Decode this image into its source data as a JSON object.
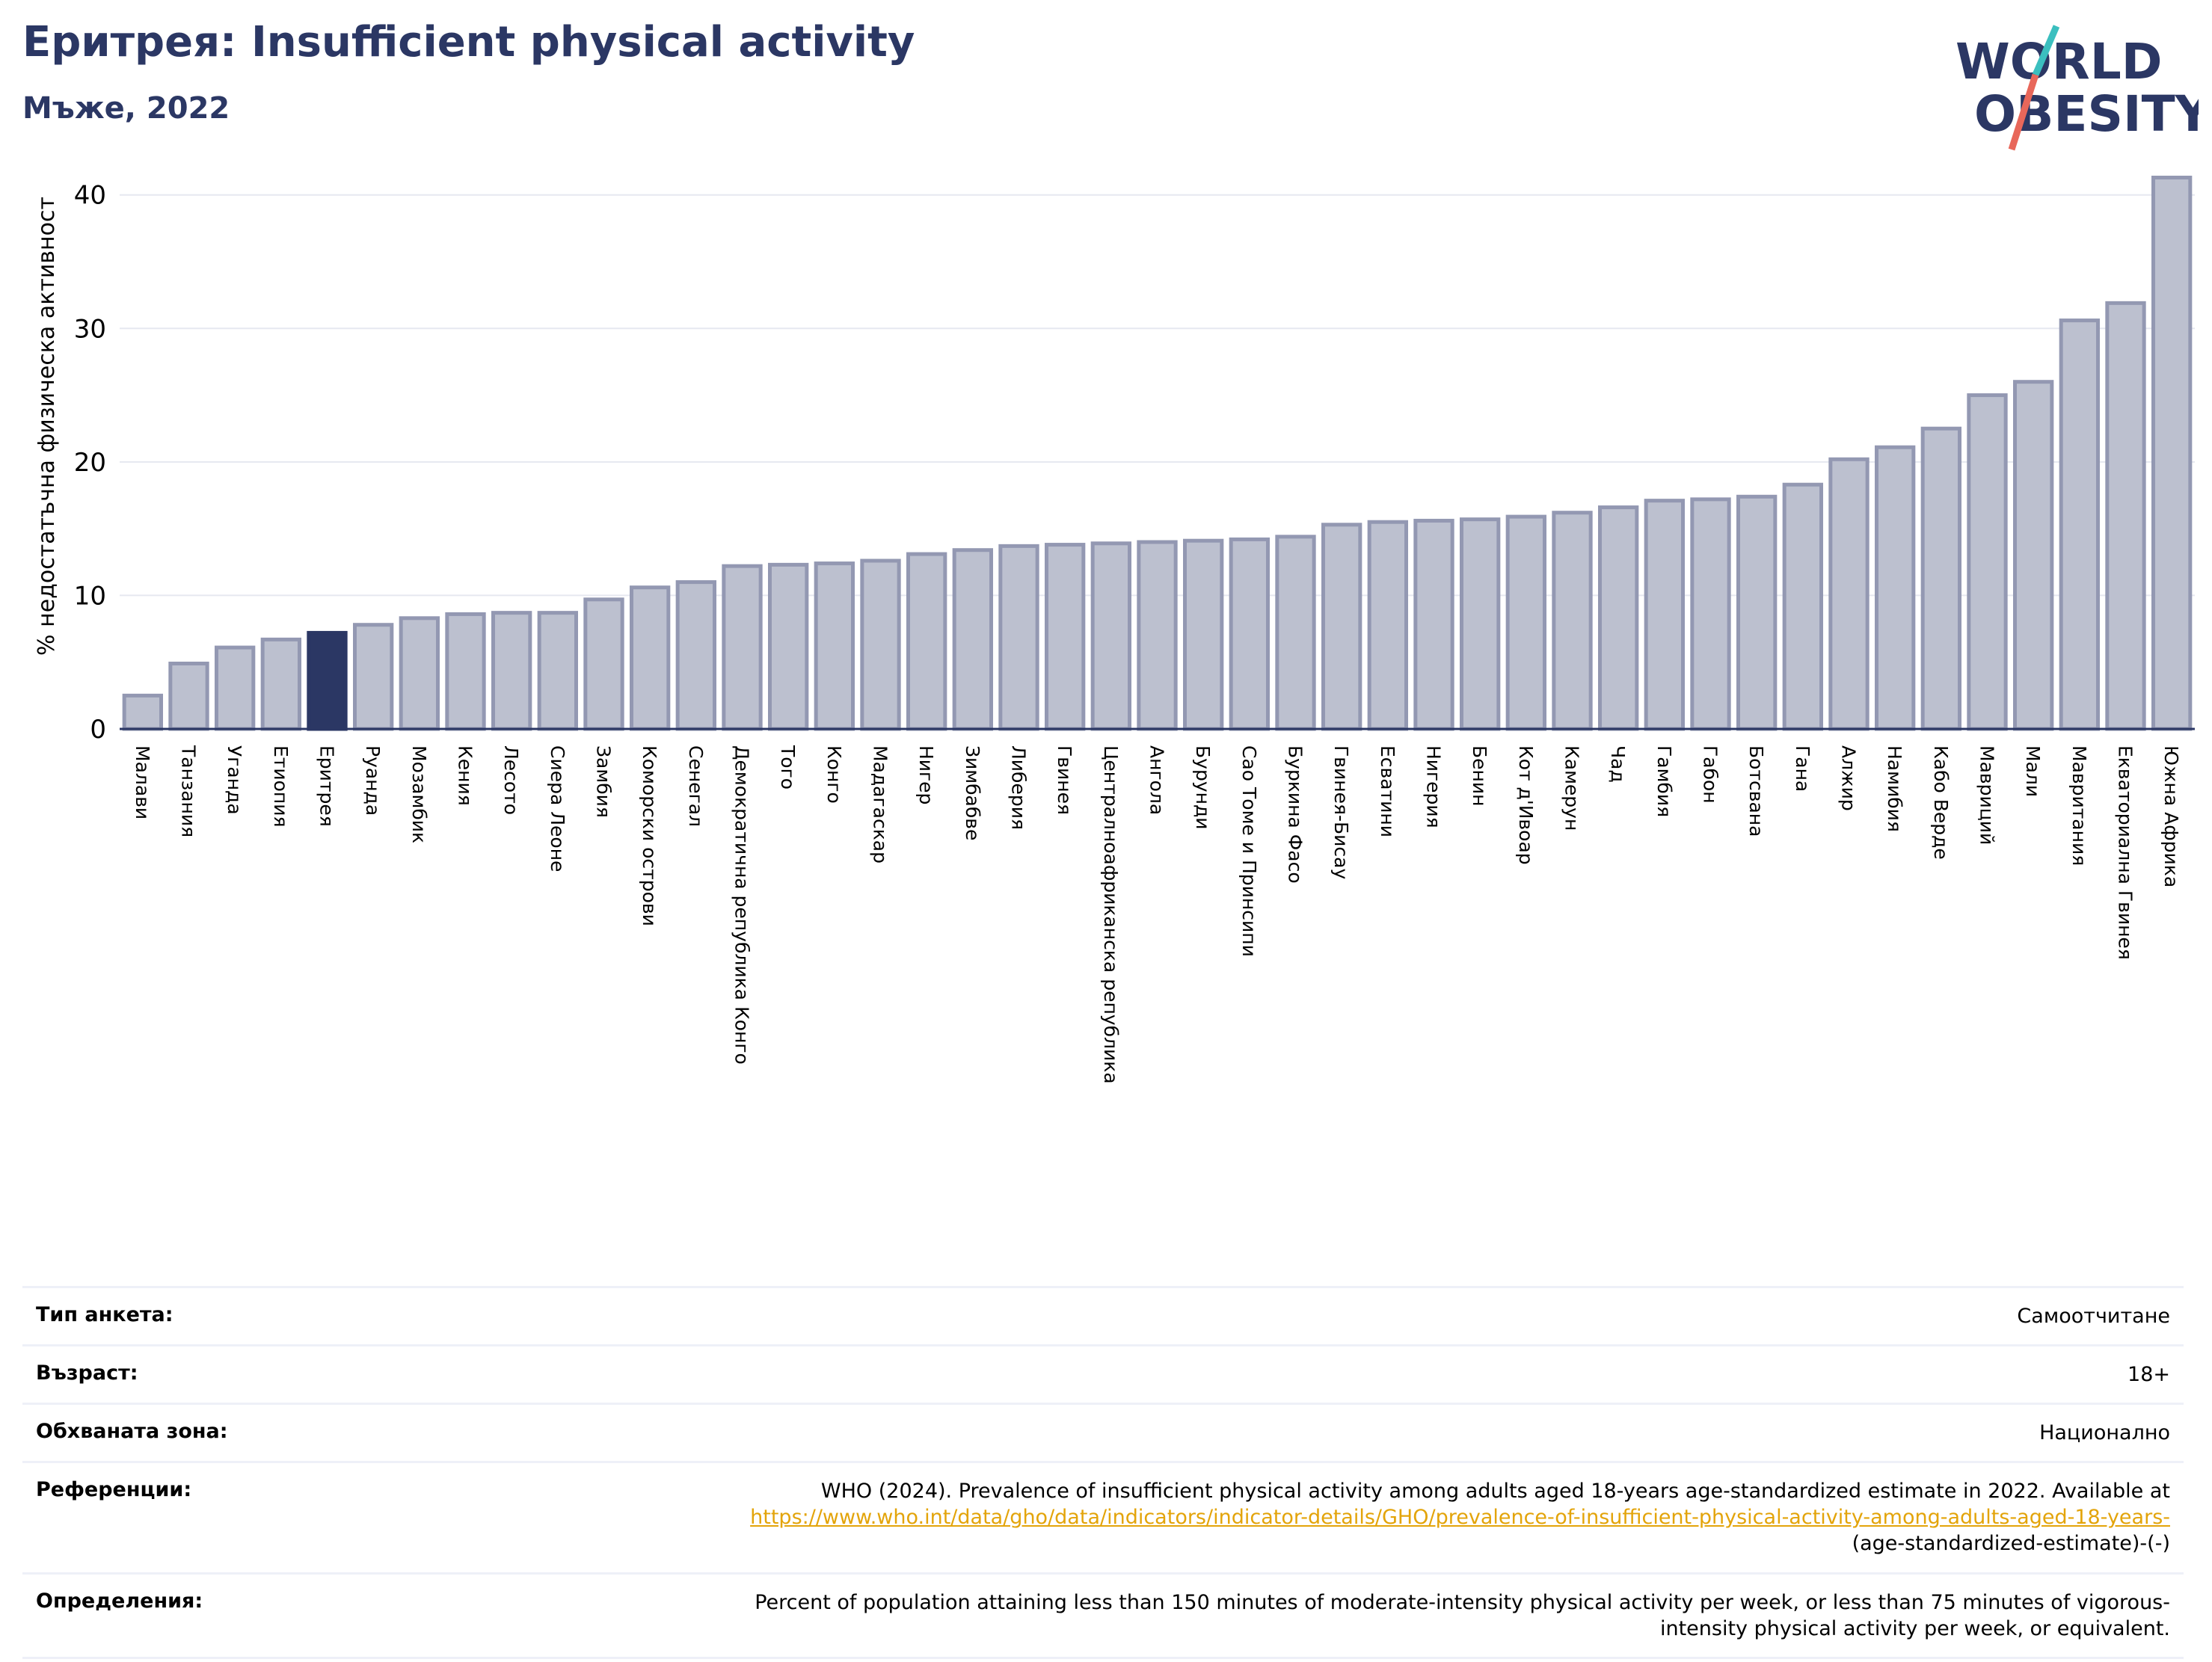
{
  "header": {
    "title": "Еритрея: Insufficient physical activity",
    "subtitle": "Мъже, 2022"
  },
  "logo": {
    "line1": "WORLD",
    "line2": "OBESITY"
  },
  "colors": {
    "highlight": "#2b3764",
    "bar_fill": "#bcc0cf",
    "bar_stroke": "#9398b2",
    "grid": "#e6e8f0",
    "logo_teal": "#3bbfbf",
    "logo_red": "#e8675a"
  },
  "chart_data": {
    "type": "bar",
    "ylabel": "% недостатъчна физическа активност",
    "ylim": [
      0,
      42
    ],
    "yticks": [
      0,
      10,
      20,
      30,
      40
    ],
    "grid": true,
    "highlight": "Еритрея",
    "categories": [
      "Малави",
      "Танзания",
      "Уганда",
      "Етиопия",
      "Еритрея",
      "Руанда",
      "Мозамбик",
      "Кения",
      "Лесото",
      "Сиера Леоне",
      "Замбия",
      "Коморски острови",
      "Сенегал",
      "Демократична република Конго",
      "Того",
      "Конго",
      "Мадагаскар",
      "Нигер",
      "Зимбабве",
      "Либерия",
      "Гвинея",
      "Централноафриканска република",
      "Ангола",
      "Бурунди",
      "Сао Томе и Принсипи",
      "Буркина Фасо",
      "Гвинея-Бисау",
      "Есватини",
      "Нигерия",
      "Бенин",
      "Кот д'Ивоар",
      "Камерун",
      "Чад",
      "Гамбия",
      "Габон",
      "Ботсвана",
      "Гана",
      "Алжир",
      "Намибия",
      "Кабо Верде",
      "Мавриций",
      "Мали",
      "Мавритания",
      "Екваториална Гвинея",
      "Южна Африка"
    ],
    "values": [
      2.5,
      4.9,
      6.1,
      6.7,
      7.2,
      7.8,
      8.3,
      8.6,
      8.7,
      8.7,
      9.7,
      10.6,
      11.0,
      12.2,
      12.3,
      12.4,
      12.6,
      13.1,
      13.4,
      13.7,
      13.8,
      13.9,
      14.0,
      14.1,
      14.2,
      14.4,
      15.3,
      15.5,
      15.6,
      15.7,
      15.9,
      16.2,
      16.6,
      17.1,
      17.2,
      17.4,
      18.3,
      20.2,
      21.1,
      22.5,
      25.0,
      26.0,
      30.6,
      31.9,
      41.3
    ]
  },
  "meta": {
    "rows": [
      {
        "key": "Тип анкета:",
        "value": "Самоотчитане"
      },
      {
        "key": "Възраст:",
        "value": "18+"
      },
      {
        "key": "Обхваната зона:",
        "value": "Национално"
      }
    ],
    "references": {
      "key": "Референции:",
      "text": "WHO (2024). Prevalence of insufficient physical activity among adults aged 18-years age-standardized estimate in 2022. Available at",
      "link": "https://www.who.int/data/gho/data/indicators/indicator-details/GHO/prevalence-of-insufficient-physical-activity-among-adults-aged-18-years-",
      "tail": "(age-standardized-estimate)-(-)"
    },
    "definitions": {
      "key": "Определения:",
      "line1": "Percent of population attaining less than 150 minutes of moderate-intensity physical activity per week, or less than 75 minutes of vigorous-",
      "line2": "intensity physical activity per week, or equivalent."
    }
  }
}
